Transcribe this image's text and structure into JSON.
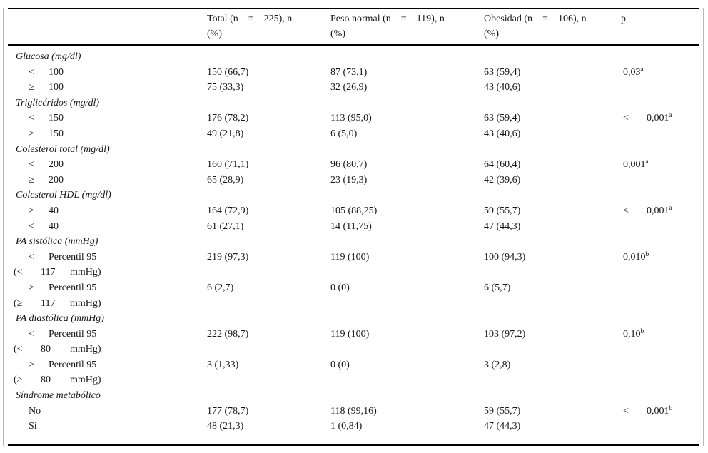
{
  "colors": {
    "rule": "#000000",
    "frame_border": "#b9b9b9",
    "text": "#161616",
    "background": "#ffffff"
  },
  "table": {
    "header": {
      "cols": [
        {
          "id": "total",
          "line1": [
            "Total (n",
            "=",
            "225), n"
          ],
          "line2": "(%)"
        },
        {
          "id": "peso-normal",
          "line1": [
            "Peso normal (n",
            "=",
            "119), n"
          ],
          "line2": "(%)"
        },
        {
          "id": "obesidad",
          "line1": [
            "Obesidad (n",
            "=",
            "106), n"
          ],
          "line2": "(%)"
        },
        {
          "id": "p",
          "line1": [
            "p"
          ],
          "line2": ""
        }
      ]
    },
    "rows": [
      {
        "type": "section",
        "label": "Glucosa (mg/dl)"
      },
      {
        "type": "data",
        "sym": "<",
        "label": "100",
        "total": "150 (66,7)",
        "normal": "87 (73,1)",
        "obes": "63 (59,4)",
        "p": {
          "prefix": "",
          "value": "0,03",
          "sup": "a"
        }
      },
      {
        "type": "data",
        "sym": "≥",
        "label": "100",
        "total": "75 (33,3)",
        "normal": "32 (26,9)",
        "obes": "43 (40,6)"
      },
      {
        "type": "section",
        "label": "Triglicéridos (mg/dl)"
      },
      {
        "type": "data",
        "sym": "<",
        "label": "150",
        "total": "176 (78,2)",
        "normal": "113 (95,0)",
        "obes": "63 (59,4)",
        "p": {
          "prefix": "<",
          "value": "0,001",
          "sup": "a"
        }
      },
      {
        "type": "data",
        "sym": "≥",
        "label": "150",
        "total": "49 (21,8)",
        "normal": "6 (5,0)",
        "obes": "43 (40,6)"
      },
      {
        "type": "section",
        "label": "Colesterol total (mg/dl)"
      },
      {
        "type": "data",
        "sym": "<",
        "label": "200",
        "total": "160 (71,1)",
        "normal": "96 (80,7)",
        "obes": "64 (60,4)",
        "p": {
          "prefix": "",
          "value": "0,001",
          "sup": "a"
        }
      },
      {
        "type": "data",
        "sym": "≥",
        "label": "200",
        "total": "65 (28,9)",
        "normal": "23 (19,3)",
        "obes": "42 (39,6)"
      },
      {
        "type": "section",
        "label": "Colesterol HDL (mg/dl)"
      },
      {
        "type": "data",
        "sym": "≥",
        "label": "40",
        "total": "164 (72,9)",
        "normal": "105 (88,25)",
        "obes": "59 (55,7)",
        "p": {
          "prefix": "<",
          "value": "0,001",
          "sup": "a"
        }
      },
      {
        "type": "data",
        "sym": "<",
        "label": "40",
        "total": "61 (27,1)",
        "normal": "14 (11,75)",
        "obes": "47 (44,3)"
      },
      {
        "type": "section",
        "label": "PA sistólica (mmHg)"
      },
      {
        "type": "data",
        "sym": "<",
        "label": "Percentil 95",
        "total": "219 (97,3)",
        "normal": "119 (100)",
        "obes": "100 (94,3)",
        "p": {
          "prefix": "",
          "value": "0,010",
          "sup": "b"
        }
      },
      {
        "type": "cont",
        "segs": [
          "(<",
          "117",
          "mmHg)"
        ]
      },
      {
        "type": "data",
        "sym": "≥",
        "label": "Percentil 95",
        "total": "6 (2,7)",
        "normal": "0 (0)",
        "obes": "6 (5,7)"
      },
      {
        "type": "cont",
        "segs": [
          "(≥",
          "117",
          "mmHg)"
        ]
      },
      {
        "type": "section",
        "label": "PA diastólica (mmHg)"
      },
      {
        "type": "data",
        "sym": "<",
        "label": "Percentil 95",
        "total": "222 (98,7)",
        "normal": "119 (100)",
        "obes": "103 (97,2)",
        "p": {
          "prefix": "",
          "value": "0,10",
          "sup": "b"
        }
      },
      {
        "type": "cont",
        "segs": [
          "(<",
          "80",
          "mmHg)"
        ]
      },
      {
        "type": "data",
        "sym": "≥",
        "label": "Percentil 95",
        "total": "3 (1,33)",
        "normal": "0 (0)",
        "obes": "3 (2,8)"
      },
      {
        "type": "cont",
        "segs": [
          "(≥",
          "80",
          "mmHg)"
        ]
      },
      {
        "type": "section",
        "label": "Síndrome metabólico"
      },
      {
        "type": "data",
        "sym": "",
        "label": "No",
        "total": "177 (78,7)",
        "normal": "118 (99,16)",
        "obes": "59 (55,7)",
        "p": {
          "prefix": "<",
          "value": "0,001",
          "sup": "b"
        }
      },
      {
        "type": "data",
        "sym": "",
        "label": "Sí",
        "total": "48 (21,3)",
        "normal": "1 (0,84)",
        "obes": "47 (44,3)"
      }
    ]
  }
}
